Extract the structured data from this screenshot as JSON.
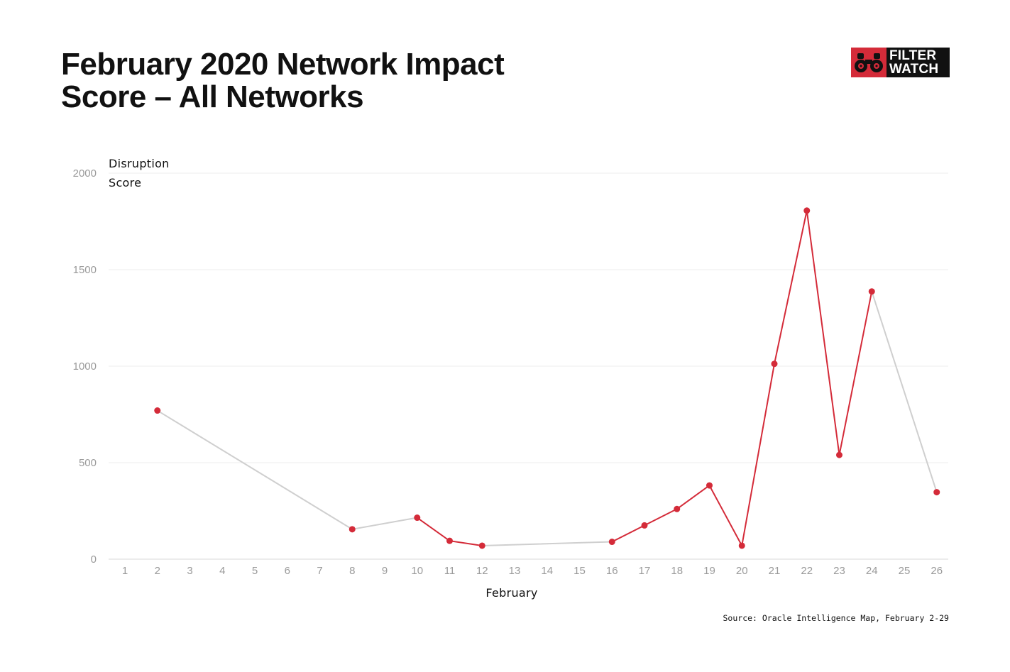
{
  "title_lines": [
    "February 2020 Network Impact",
    "Score – All Networks"
  ],
  "logo": {
    "text_line1": "FILTER",
    "text_line2": "WATCH",
    "icon": "binoculars-icon",
    "brand_red": "#d42b39",
    "brand_dark": "#111111"
  },
  "source": "Source: Oracle Intelligence Map, February 2-29",
  "colors": {
    "highlight": "#d42b39",
    "gap_line": "#cfcfcf",
    "grid": "#eeeeee",
    "tick_text": "#9a9a9a"
  },
  "chart_data": {
    "type": "line",
    "title": "February 2020 Network Impact Score – All Networks",
    "xlabel": "February",
    "ylabel_lines": [
      "Disruption",
      "Score"
    ],
    "ylim": [
      0,
      2000
    ],
    "yticks": [
      0,
      500,
      1000,
      1500,
      2000
    ],
    "categories": [
      "1",
      "2",
      "3",
      "4",
      "5",
      "6",
      "7",
      "8",
      "9",
      "10",
      "11",
      "12",
      "13",
      "14",
      "15",
      "16",
      "17",
      "18",
      "19",
      "20",
      "21",
      "22",
      "23",
      "24",
      "25",
      "26"
    ],
    "points": [
      {
        "x": 2,
        "y": 770
      },
      {
        "x": 8,
        "y": 155
      },
      {
        "x": 10,
        "y": 215
      },
      {
        "x": 11,
        "y": 95
      },
      {
        "x": 12,
        "y": 70
      },
      {
        "x": 16,
        "y": 90
      },
      {
        "x": 17,
        "y": 175
      },
      {
        "x": 18,
        "y": 260
      },
      {
        "x": 19,
        "y": 382
      },
      {
        "x": 20,
        "y": 70
      },
      {
        "x": 21,
        "y": 1012
      },
      {
        "x": 22,
        "y": 1806
      },
      {
        "x": 23,
        "y": 540
      },
      {
        "x": 24,
        "y": 1387
      },
      {
        "x": 26,
        "y": 347
      }
    ],
    "grid": true,
    "legend": "none"
  }
}
